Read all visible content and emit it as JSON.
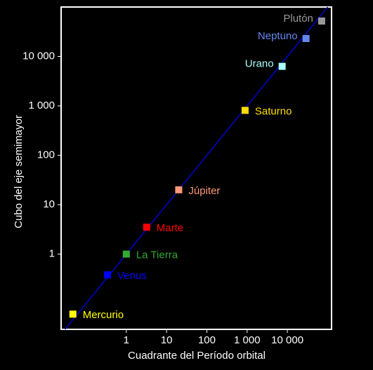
{
  "chart_data": {
    "type": "scatter",
    "xlabel": "Cuadrante del Período orbital",
    "ylabel": "Cubo del eje semimayor",
    "log_x": true,
    "log_y": true,
    "xlim": [
      0.024,
      125000
    ],
    "ylim": [
      0.03,
      100000
    ],
    "xticks": [
      1,
      10,
      100,
      {
        "value": 1000,
        "label": "1 000"
      },
      {
        "value": 10000,
        "label": "10 000"
      }
    ],
    "yticks": [
      1,
      10,
      100,
      {
        "value": 1000,
        "label": "1 000"
      },
      {
        "value": 10000,
        "label": "10 000"
      }
    ],
    "labels": [
      "Mercurio",
      "Venus",
      "La Tierra",
      "Marte",
      "Júpiter",
      "Saturno",
      "Urano",
      "Neptuno",
      "Plutón"
    ],
    "x": [
      0.047,
      0.34,
      1,
      3.2,
      20,
      890,
      7400,
      29000,
      71000
    ],
    "values": [
      0.061,
      0.38,
      1,
      3.5,
      20,
      810,
      6300,
      23000,
      52000
    ],
    "colors": [
      "#ffff00",
      "#0000ff",
      "#33aa33",
      "#ff0000",
      "#ff9977",
      "#ffdd00",
      "#aaffff",
      "#6688ee",
      "#999999"
    ],
    "line_color": "#0000cc"
  }
}
